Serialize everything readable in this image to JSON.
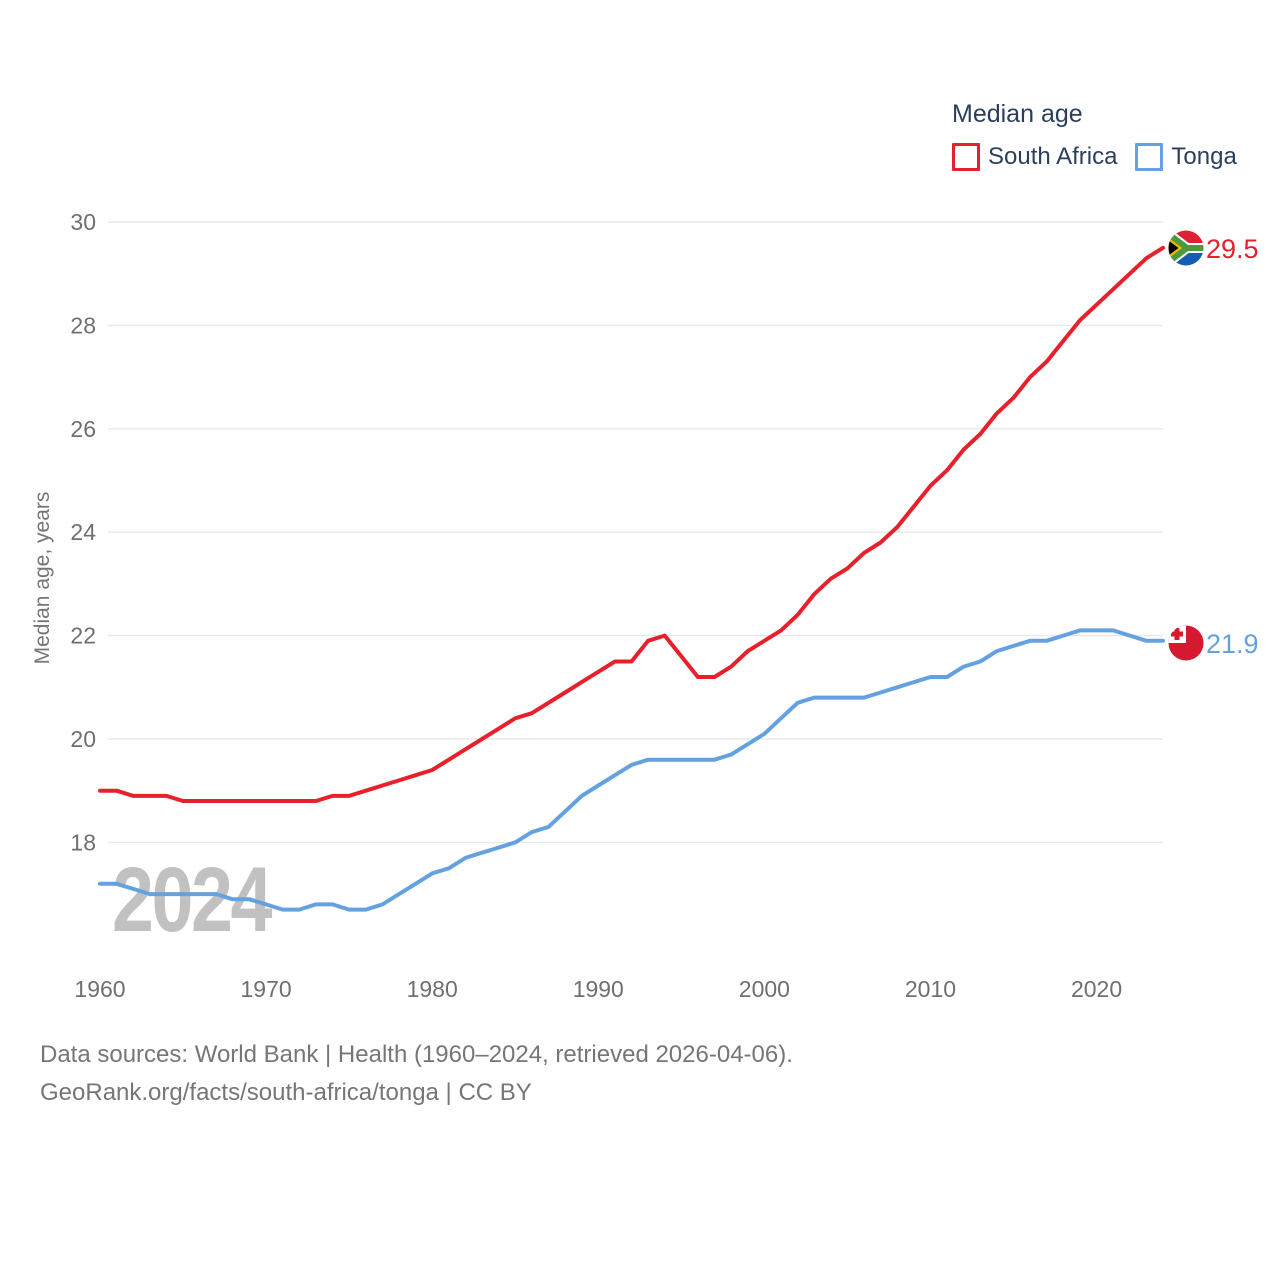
{
  "legend": {
    "title": "Median age",
    "items": [
      {
        "label": "South Africa",
        "color": "#e8202c"
      },
      {
        "label": "Tonga",
        "color": "#64a1e1"
      }
    ]
  },
  "y_axis_title": "Median age, years",
  "watermark": "2024",
  "end_labels": [
    {
      "text": "29.5",
      "color": "#e8202c",
      "flag": "south-africa-flag"
    },
    {
      "text": "21.9",
      "color": "#64a1e1",
      "flag": "tonga-flag"
    }
  ],
  "footer": {
    "line1": "Data sources: World Bank | Health (1960–2024, retrieved 2026-04-06).",
    "line2": "GeoRank.org/facts/south-africa/tonga | CC BY"
  },
  "chart_data": {
    "type": "line",
    "title": "Median age",
    "xlabel": "",
    "ylabel": "Median age, years",
    "xlim": [
      1960,
      2024
    ],
    "ylim": [
      16.4,
      30.6
    ],
    "grid": "horizontal",
    "legend_position": "top-right",
    "x_ticks": [
      1960,
      1970,
      1980,
      1990,
      2000,
      2010,
      2020
    ],
    "y_ticks": [
      18,
      20,
      22,
      24,
      26,
      28,
      30
    ],
    "x": [
      1960,
      1961,
      1962,
      1963,
      1964,
      1965,
      1966,
      1967,
      1968,
      1969,
      1970,
      1971,
      1972,
      1973,
      1974,
      1975,
      1976,
      1977,
      1978,
      1979,
      1980,
      1981,
      1982,
      1983,
      1984,
      1985,
      1986,
      1987,
      1988,
      1989,
      1990,
      1991,
      1992,
      1993,
      1994,
      1995,
      1996,
      1997,
      1998,
      1999,
      2000,
      2001,
      2002,
      2003,
      2004,
      2005,
      2006,
      2007,
      2008,
      2009,
      2010,
      2011,
      2012,
      2013,
      2014,
      2015,
      2016,
      2017,
      2018,
      2019,
      2020,
      2021,
      2022,
      2023,
      2024
    ],
    "series": [
      {
        "name": "South Africa",
        "color": "#e8202c",
        "end_value": 29.5,
        "values": [
          19.0,
          19.0,
          18.9,
          18.9,
          18.9,
          18.8,
          18.8,
          18.8,
          18.8,
          18.8,
          18.8,
          18.8,
          18.8,
          18.8,
          18.9,
          18.9,
          19.0,
          19.1,
          19.2,
          19.3,
          19.4,
          19.6,
          19.8,
          20.0,
          20.2,
          20.4,
          20.5,
          20.7,
          20.9,
          21.1,
          21.3,
          21.5,
          21.5,
          21.9,
          22.0,
          21.6,
          21.2,
          21.2,
          21.4,
          21.7,
          21.9,
          22.1,
          22.4,
          22.8,
          23.1,
          23.3,
          23.6,
          23.8,
          24.1,
          24.5,
          24.9,
          25.2,
          25.6,
          25.9,
          26.3,
          26.6,
          27.0,
          27.3,
          27.7,
          28.1,
          28.4,
          28.7,
          29.0,
          29.3,
          29.5
        ]
      },
      {
        "name": "Tonga",
        "color": "#64a1e1",
        "end_value": 21.9,
        "values": [
          17.2,
          17.2,
          17.1,
          17.0,
          17.0,
          17.0,
          17.0,
          17.0,
          16.9,
          16.9,
          16.8,
          16.7,
          16.7,
          16.8,
          16.8,
          16.7,
          16.7,
          16.8,
          17.0,
          17.2,
          17.4,
          17.5,
          17.7,
          17.8,
          17.9,
          18.0,
          18.2,
          18.3,
          18.6,
          18.9,
          19.1,
          19.3,
          19.5,
          19.6,
          19.6,
          19.6,
          19.6,
          19.6,
          19.7,
          19.9,
          20.1,
          20.4,
          20.7,
          20.8,
          20.8,
          20.8,
          20.8,
          20.9,
          21.0,
          21.1,
          21.2,
          21.2,
          21.4,
          21.5,
          21.7,
          21.8,
          21.9,
          21.9,
          22.0,
          22.1,
          22.1,
          22.1,
          22.0,
          21.9,
          21.9
        ]
      }
    ]
  }
}
